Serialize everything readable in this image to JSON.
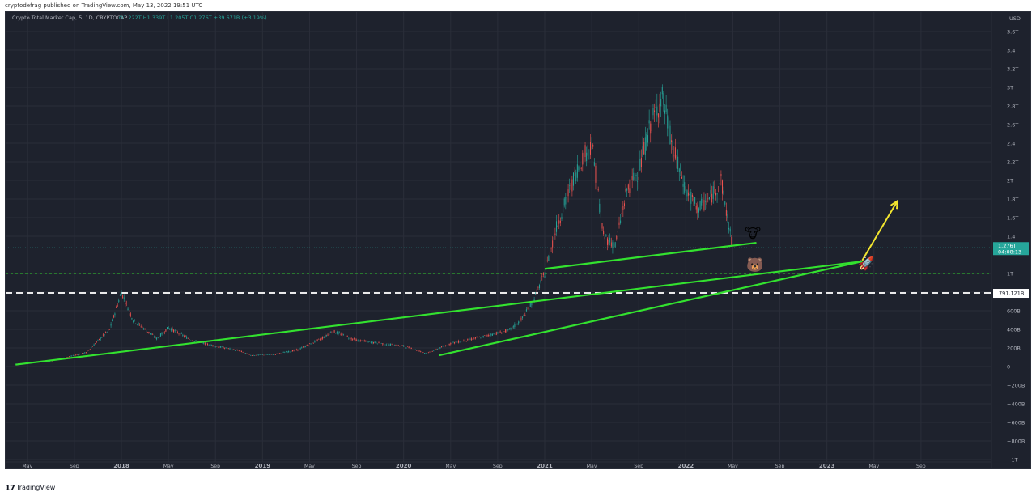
{
  "header": {
    "publisher": "cryptodefrag published on TradingView.com, May 13, 2022 19:51 UTC"
  },
  "legend": {
    "symbol": "Crypto Total Market Cap, 5, 1D, CRYPTOCAP",
    "ohlc": "O1.222T H1.339T L1.205T C1.276T +39.671B (+3.19%)",
    "color": "#26a69a"
  },
  "price_axis": {
    "currency": "USD",
    "tick_labels": [
      "3.6T",
      "3.4T",
      "3.2T",
      "3T",
      "2.8T",
      "2.6T",
      "2.4T",
      "2.2T",
      "2T",
      "1.8T",
      "1.6T",
      "1.4T",
      "1T",
      "800B",
      "600B",
      "400B",
      "200B",
      "0",
      "−200B",
      "−400B",
      "−600B",
      "−800B",
      "−1T"
    ],
    "last_price_label": "1.276T",
    "countdown_label": "04:08:13",
    "level_label": "791.121B"
  },
  "time_axis": {
    "labels": [
      "May",
      "Sep",
      "2018",
      "May",
      "Sep",
      "2019",
      "May",
      "Sep",
      "2020",
      "May",
      "Sep",
      "2021",
      "May",
      "Sep",
      "2022",
      "May",
      "Sep",
      "2023",
      "May",
      "Sep"
    ]
  },
  "chart_data": {
    "type": "line",
    "title": "",
    "xlabel": "",
    "ylabel": "USD",
    "ylim": [
      -1000,
      3700
    ],
    "x": [
      "2017-04",
      "2017-07",
      "2017-10",
      "2017-12",
      "2018-01",
      "2018-02",
      "2018-04",
      "2018-05",
      "2018-07",
      "2018-09",
      "2018-11",
      "2018-12",
      "2019-02",
      "2019-04",
      "2019-06",
      "2019-07",
      "2019-09",
      "2019-11",
      "2020-01",
      "2020-03",
      "2020-05",
      "2020-07",
      "2020-09",
      "2020-10",
      "2020-11",
      "2020-12",
      "2021-01",
      "2021-02",
      "2021-04",
      "2021-05",
      "2021-06",
      "2021-07",
      "2021-08",
      "2021-09",
      "2021-10",
      "2021-11",
      "2021-12",
      "2022-01",
      "2022-02",
      "2022-03",
      "2022-04",
      "2022-05"
    ],
    "series": [
      {
        "values": [
          30,
          60,
          150,
          400,
          800,
          500,
          300,
          420,
          280,
          220,
          170,
          120,
          130,
          180,
          300,
          380,
          280,
          250,
          220,
          140,
          250,
          300,
          360,
          390,
          500,
          700,
          1000,
          1500,
          2200,
          2400,
          1400,
          1300,
          1900,
          2100,
          2600,
          2900,
          2300,
          1900,
          1700,
          1800,
          2000,
          1276
        ],
        "unit": "B"
      }
    ],
    "trendlines": [
      {
        "from": [
          "2017-04",
          20
        ],
        "to": [
          "2023-04",
          1130
        ],
        "color": "#33e22f"
      },
      {
        "from": [
          "2020-04",
          120
        ],
        "to": [
          "2023-04",
          1130
        ],
        "color": "#33e22f"
      },
      {
        "from": [
          "2021-01",
          1050
        ],
        "to": [
          "2022-07",
          1330
        ],
        "color": "#33e22f"
      },
      {
        "from": [
          "2023-04",
          1140
        ],
        "to": [
          "2023-07",
          1780
        ],
        "color": "#f2e52f"
      }
    ],
    "levels": [
      {
        "value": 1276,
        "style": "dotted",
        "color": "#26a69a"
      },
      {
        "value": 1000,
        "style": "dashed",
        "color": "#33e22f"
      },
      {
        "value": 791.121,
        "style": "dashed",
        "color": "#ffffff"
      }
    ],
    "annotations": [
      "bull-emoji",
      "bear-emoji",
      "rocket-emoji"
    ],
    "up_color": "#26a69a",
    "down_color": "#ef5350",
    "grid": true
  }
}
